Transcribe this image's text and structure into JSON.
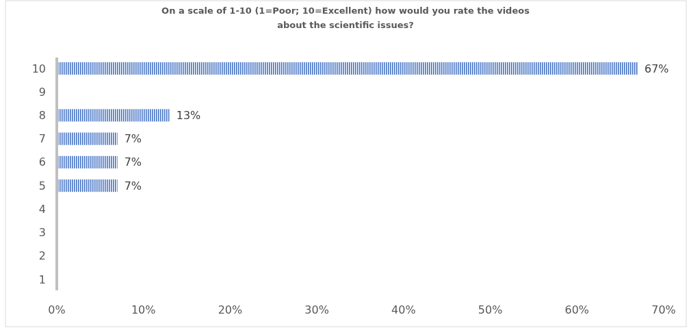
{
  "chart_data": {
    "type": "bar",
    "orientation": "horizontal",
    "title": "On a scale of 1-10 (1=Poor; 10=Excellent) how would you rate the videos about the scientific issues?",
    "categories": [
      "10",
      "9",
      "8",
      "7",
      "6",
      "5",
      "4",
      "3",
      "2",
      "1"
    ],
    "values": [
      67,
      null,
      13,
      7,
      7,
      7,
      null,
      null,
      null,
      null
    ],
    "value_labels": [
      "67%",
      null,
      "13%",
      "7%",
      "7%",
      "7%",
      null,
      null,
      null,
      null
    ],
    "color": "#4472c4",
    "xlim": [
      0,
      70
    ],
    "xticks": [
      {
        "value": 0,
        "label": "0%"
      },
      {
        "value": 10,
        "label": "10%"
      },
      {
        "value": 20,
        "label": "20%"
      },
      {
        "value": 30,
        "label": "30%"
      },
      {
        "value": 40,
        "label": "40%"
      },
      {
        "value": 50,
        "label": "50%"
      },
      {
        "value": 60,
        "label": "60%"
      },
      {
        "value": 70,
        "label": "70%"
      }
    ],
    "grid": false
  }
}
